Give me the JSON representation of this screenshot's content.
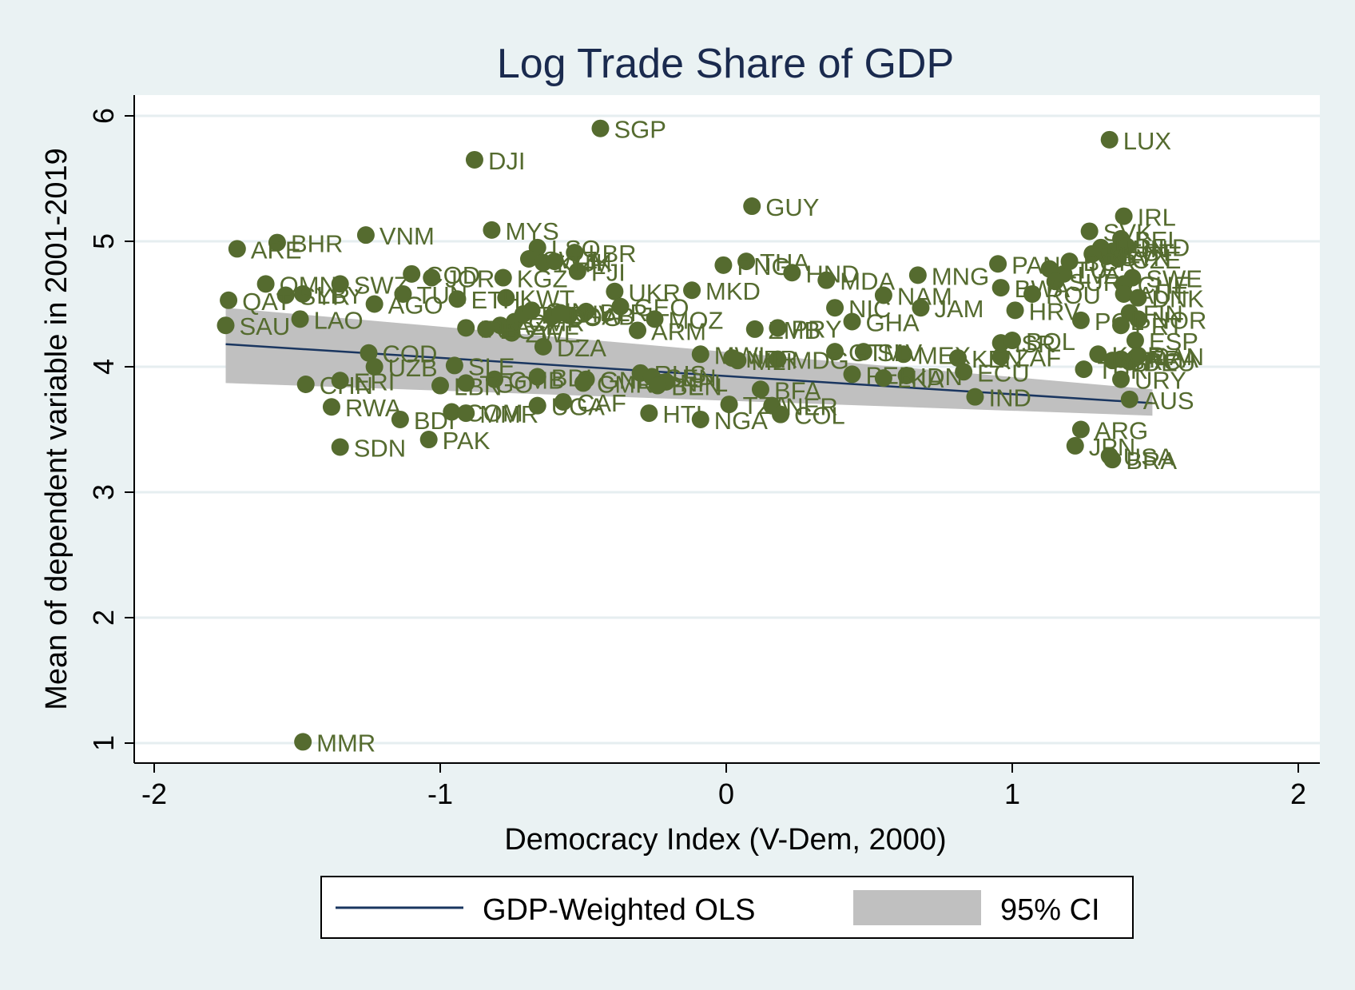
{
  "chart_data": {
    "type": "scatter",
    "title": "Log Trade Share of GDP",
    "xlabel": "Democracy Index (V-Dem, 2000)",
    "ylabel": "Mean of dependent variable in 2001-2019",
    "xlim": [
      -2,
      2
    ],
    "ylim": [
      1,
      6
    ],
    "xticks": [
      "-2",
      "-1",
      "0",
      "1",
      "2"
    ],
    "yticks": [
      "1",
      "2",
      "3",
      "4",
      "5",
      "6"
    ],
    "grid": true,
    "legend_position": "bottom",
    "colors": {
      "background": "#eaf2f3",
      "plot_background": "#ffffff",
      "points": "#556b2f",
      "fit_line": "#1a3660",
      "ci_band": "#c0c0c0",
      "title": "#1a2a4e"
    },
    "series": [
      {
        "name": "GDP-Weighted OLS",
        "kind": "line",
        "x": [
          -1.75,
          1.49
        ],
        "y": [
          4.18,
          3.71
        ]
      },
      {
        "name": "95% CI",
        "kind": "band",
        "x": [
          -1.75,
          1.49
        ],
        "lower": [
          3.87,
          3.61
        ],
        "upper": [
          4.47,
          3.82
        ]
      }
    ],
    "points": [
      {
        "label": "MMR",
        "x": -1.48,
        "y": 1.01
      },
      {
        "label": "SGP",
        "x": -0.44,
        "y": 5.9
      },
      {
        "label": "LUX",
        "x": 1.34,
        "y": 5.81
      },
      {
        "label": "DJI",
        "x": -0.88,
        "y": 5.65
      },
      {
        "label": "GUY",
        "x": 0.09,
        "y": 5.28
      },
      {
        "label": "IRL",
        "x": 1.39,
        "y": 5.2
      },
      {
        "label": "MYS",
        "x": -0.82,
        "y": 5.09
      },
      {
        "label": "VNM",
        "x": -1.26,
        "y": 5.05
      },
      {
        "label": "BHR",
        "x": -1.57,
        "y": 4.99
      },
      {
        "label": "ARE",
        "x": -1.71,
        "y": 4.94
      },
      {
        "label": "SVK",
        "x": 1.27,
        "y": 5.08
      },
      {
        "label": "BEL",
        "x": 1.38,
        "y": 5.02
      },
      {
        "label": "NLD",
        "x": 1.4,
        "y": 4.96
      },
      {
        "label": "EST",
        "x": 1.35,
        "y": 4.92
      },
      {
        "label": "HUN",
        "x": 1.31,
        "y": 4.95
      },
      {
        "label": "CZE",
        "x": 1.37,
        "y": 4.86
      },
      {
        "label": "SVN",
        "x": 1.33,
        "y": 4.88
      },
      {
        "label": "LSO",
        "x": -0.66,
        "y": 4.95
      },
      {
        "label": "LBR",
        "x": -0.53,
        "y": 4.91
      },
      {
        "label": "MLT",
        "x": 1.28,
        "y": 4.9
      },
      {
        "label": "THA",
        "x": 0.07,
        "y": 4.84
      },
      {
        "label": "PNG",
        "x": -0.01,
        "y": 4.81
      },
      {
        "label": "HND",
        "x": 0.23,
        "y": 4.75
      },
      {
        "label": "PAN",
        "x": 0.95,
        "y": 4.82
      },
      {
        "label": "SWZ",
        "x": -0.69,
        "y": 4.86
      },
      {
        "label": "KHM",
        "x": -0.64,
        "y": 4.83
      },
      {
        "label": "FJI",
        "x": -0.52,
        "y": 4.76
      },
      {
        "label": "TJK",
        "x": -0.6,
        "y": 4.84
      },
      {
        "label": "KGZ",
        "x": -0.78,
        "y": 4.71
      },
      {
        "label": "LTU",
        "x": 1.13,
        "y": 4.78
      },
      {
        "label": "LVA",
        "x": 1.18,
        "y": 4.74
      },
      {
        "label": "BGR",
        "x": 1.2,
        "y": 4.84
      },
      {
        "label": "MNG",
        "x": 0.67,
        "y": 4.73
      },
      {
        "label": "MDA",
        "x": 0.35,
        "y": 4.69
      },
      {
        "label": "SUR",
        "x": 1.15,
        "y": 4.68
      },
      {
        "label": "SWE",
        "x": 1.42,
        "y": 4.71
      },
      {
        "label": "CHE",
        "x": 1.39,
        "y": 4.66
      },
      {
        "label": "OMN",
        "x": -1.61,
        "y": 4.66
      },
      {
        "label": "SWZ",
        "x": -1.35,
        "y": 4.66
      },
      {
        "label": "COD",
        "x": -1.1,
        "y": 4.74
      },
      {
        "label": "JOR",
        "x": -1.03,
        "y": 4.71
      },
      {
        "label": "LBY",
        "x": -1.48,
        "y": 4.58
      },
      {
        "label": "SYR",
        "x": -1.54,
        "y": 4.57
      },
      {
        "label": "TUN",
        "x": -1.13,
        "y": 4.58
      },
      {
        "label": "AGO",
        "x": -1.23,
        "y": 4.5
      },
      {
        "label": "KWT",
        "x": -0.77,
        "y": 4.55
      },
      {
        "label": "UKR",
        "x": -0.39,
        "y": 4.6
      },
      {
        "label": "MKD",
        "x": -0.12,
        "y": 4.61
      },
      {
        "label": "QAT",
        "x": -1.74,
        "y": 4.53
      },
      {
        "label": "SAU",
        "x": -1.75,
        "y": 4.33
      },
      {
        "label": "LAO",
        "x": -1.49,
        "y": 4.38
      },
      {
        "label": "NIC",
        "x": 0.38,
        "y": 4.47
      },
      {
        "label": "NAM",
        "x": 0.55,
        "y": 4.57
      },
      {
        "label": "JAM",
        "x": 0.68,
        "y": 4.47
      },
      {
        "label": "BWA",
        "x": 0.96,
        "y": 4.63
      },
      {
        "label": "ROU",
        "x": 1.07,
        "y": 4.58
      },
      {
        "label": "HRV",
        "x": 1.01,
        "y": 4.45
      },
      {
        "label": "AUT",
        "x": 1.39,
        "y": 4.58
      },
      {
        "label": "DNK",
        "x": 1.44,
        "y": 4.55
      },
      {
        "label": "FIN",
        "x": 1.41,
        "y": 4.43
      },
      {
        "label": "NOR",
        "x": 1.44,
        "y": 4.38
      },
      {
        "label": "GEO",
        "x": -0.37,
        "y": 4.48
      },
      {
        "label": "MOZ",
        "x": -0.25,
        "y": 4.38
      },
      {
        "label": "ARM",
        "x": -0.31,
        "y": 4.29
      },
      {
        "label": "BLR",
        "x": -0.49,
        "y": 4.44
      },
      {
        "label": "GAB",
        "x": -0.55,
        "y": 4.41
      },
      {
        "label": "ZMB",
        "x": 0.1,
        "y": 4.3
      },
      {
        "label": "PRY",
        "x": 0.18,
        "y": 4.31
      },
      {
        "label": "GHA",
        "x": 0.44,
        "y": 4.36
      },
      {
        "label": "POL",
        "x": 1.24,
        "y": 4.37
      },
      {
        "label": "PRT",
        "x": 1.38,
        "y": 4.33
      },
      {
        "label": "ESP",
        "x": 1.43,
        "y": 4.21
      },
      {
        "label": "ISR",
        "x": 0.96,
        "y": 4.19
      },
      {
        "label": "BOL",
        "x": 1.0,
        "y": 4.21
      },
      {
        "label": "ZAF",
        "x": 0.96,
        "y": 4.08
      },
      {
        "label": "DZA",
        "x": -0.64,
        "y": 4.16
      },
      {
        "label": "ZWE",
        "x": -0.75,
        "y": 4.27
      },
      {
        "label": "AZE",
        "x": -0.79,
        "y": 4.33
      },
      {
        "label": "CMR",
        "x": -0.74,
        "y": 4.36
      },
      {
        "label": "IRN",
        "x": -0.91,
        "y": 4.31
      },
      {
        "label": "EGY",
        "x": -0.84,
        "y": 4.3
      },
      {
        "label": "TCD",
        "x": -0.71,
        "y": 4.42
      },
      {
        "label": "GIN",
        "x": -0.68,
        "y": 4.45
      },
      {
        "label": "COG",
        "x": -0.61,
        "y": 4.4
      },
      {
        "label": "CIV",
        "x": -0.58,
        "y": 4.43
      },
      {
        "label": "ETH",
        "x": -0.94,
        "y": 4.54
      },
      {
        "label": "KEN",
        "x": 0.81,
        "y": 4.07
      },
      {
        "label": "MEX",
        "x": 0.62,
        "y": 4.1
      },
      {
        "label": "SLV",
        "x": 0.48,
        "y": 4.12
      },
      {
        "label": "GTM",
        "x": 0.38,
        "y": 4.12
      },
      {
        "label": "MDG",
        "x": 0.18,
        "y": 4.06
      },
      {
        "label": "MWI",
        "x": -0.09,
        "y": 4.1
      },
      {
        "label": "NER",
        "x": 0.02,
        "y": 4.07
      },
      {
        "label": "MLI",
        "x": 0.04,
        "y": 4.05
      },
      {
        "label": "COD",
        "x": -1.25,
        "y": 4.11
      },
      {
        "label": "UZB",
        "x": -1.23,
        "y": 4.0
      },
      {
        "label": "SLE",
        "x": -0.95,
        "y": 4.01
      },
      {
        "label": "ITA",
        "x": 1.38,
        "y": 4.06
      },
      {
        "label": "FRA",
        "x": 1.43,
        "y": 4.07
      },
      {
        "label": "DEU",
        "x": 1.41,
        "y": 4.04
      },
      {
        "label": "GRC",
        "x": 1.35,
        "y": 4.05
      },
      {
        "label": "CAN",
        "x": 1.44,
        "y": 4.09
      },
      {
        "label": "TUR",
        "x": 1.25,
        "y": 3.98
      },
      {
        "label": "URY",
        "x": 1.38,
        "y": 3.9
      },
      {
        "label": "ECU",
        "x": 0.83,
        "y": 3.96
      },
      {
        "label": "IDN",
        "x": 0.63,
        "y": 3.93
      },
      {
        "label": "PER",
        "x": 0.44,
        "y": 3.94
      },
      {
        "label": "LKA",
        "x": 0.55,
        "y": 3.91
      },
      {
        "label": "KOR",
        "x": 1.3,
        "y": 4.1
      },
      {
        "label": "CHN",
        "x": -1.47,
        "y": 3.86
      },
      {
        "label": "ERI",
        "x": -1.35,
        "y": 3.89
      },
      {
        "label": "LBN",
        "x": -1.0,
        "y": 3.85
      },
      {
        "label": "GMB",
        "x": -0.81,
        "y": 3.9
      },
      {
        "label": "BDI",
        "x": -0.66,
        "y": 3.92
      },
      {
        "label": "GNB",
        "x": -0.49,
        "y": 3.9
      },
      {
        "label": "CMR",
        "x": -0.5,
        "y": 3.87
      },
      {
        "label": "RUS",
        "x": -0.3,
        "y": 3.95
      },
      {
        "label": "SEN",
        "x": -0.26,
        "y": 3.92
      },
      {
        "label": "NPL",
        "x": -0.21,
        "y": 3.88
      },
      {
        "label": "BEN",
        "x": -0.24,
        "y": 3.85
      },
      {
        "label": "BFA",
        "x": 0.12,
        "y": 3.82
      },
      {
        "label": "TGO",
        "x": -0.91,
        "y": 3.87
      },
      {
        "label": "IND",
        "x": 0.87,
        "y": 3.76
      },
      {
        "label": "AUS",
        "x": 1.41,
        "y": 3.74
      },
      {
        "label": "RWA",
        "x": -1.38,
        "y": 3.68
      },
      {
        "label": "BDI",
        "x": -1.14,
        "y": 3.58
      },
      {
        "label": "COM",
        "x": -0.96,
        "y": 3.64
      },
      {
        "label": "MMR",
        "x": -0.91,
        "y": 3.63
      },
      {
        "label": "UGA",
        "x": -0.66,
        "y": 3.69
      },
      {
        "label": "CAF",
        "x": -0.57,
        "y": 3.72
      },
      {
        "label": "HTI",
        "x": -0.27,
        "y": 3.63
      },
      {
        "label": "NGA",
        "x": -0.09,
        "y": 3.58
      },
      {
        "label": "TZA",
        "x": 0.01,
        "y": 3.7
      },
      {
        "label": "NER",
        "x": 0.16,
        "y": 3.69
      },
      {
        "label": "COL",
        "x": 0.19,
        "y": 3.62
      },
      {
        "label": "ARG",
        "x": 1.24,
        "y": 3.5
      },
      {
        "label": "JPN",
        "x": 1.22,
        "y": 3.37
      },
      {
        "label": "USA",
        "x": 1.34,
        "y": 3.29
      },
      {
        "label": "BRA",
        "x": 1.35,
        "y": 3.26
      },
      {
        "label": "SDN",
        "x": -1.35,
        "y": 3.36
      },
      {
        "label": "PAK",
        "x": -1.04,
        "y": 3.42
      }
    ]
  }
}
